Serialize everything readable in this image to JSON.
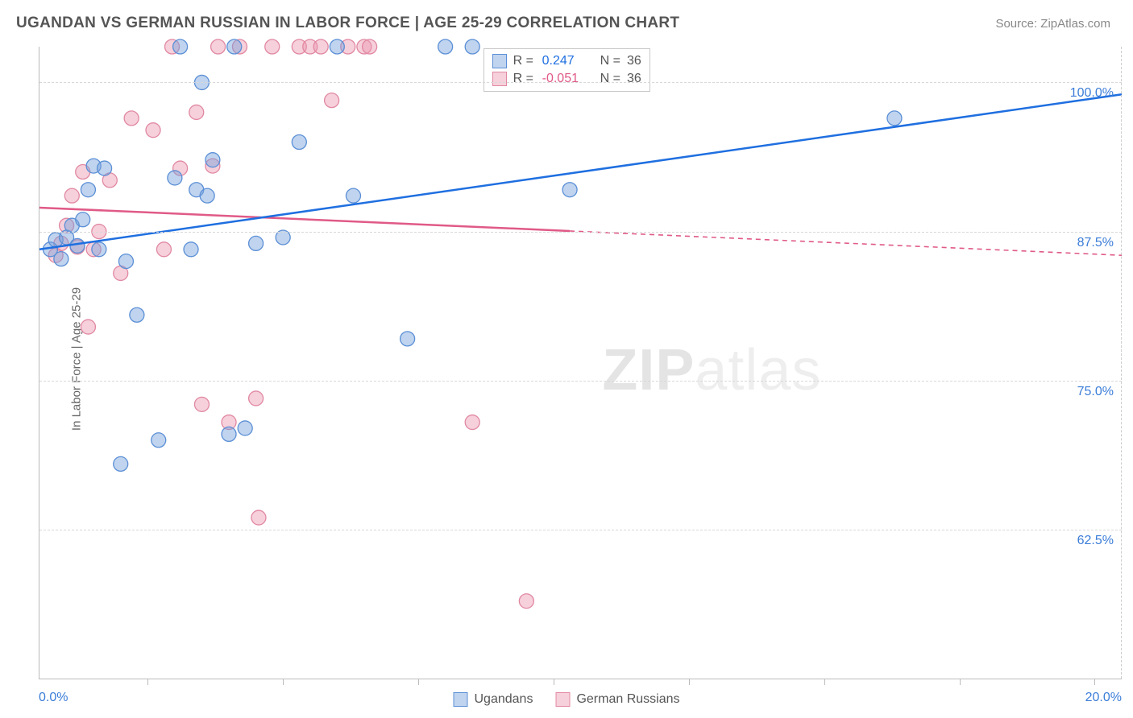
{
  "header": {
    "title": "UGANDAN VS GERMAN RUSSIAN IN LABOR FORCE | AGE 25-29 CORRELATION CHART",
    "source": "Source: ZipAtlas.com"
  },
  "axis": {
    "y_label": "In Labor Force | Age 25-29",
    "x_min": 0.0,
    "x_max": 20.0,
    "x_min_label": "0.0%",
    "x_max_label": "20.0%",
    "y_min": 50.0,
    "y_max": 103.0,
    "y_grid": [
      62.5,
      75.0,
      87.5,
      100.0
    ],
    "y_grid_labels": [
      "62.5%",
      "75.0%",
      "87.5%",
      "100.0%"
    ],
    "x_ticks": [
      2.0,
      4.5,
      7.0,
      9.5,
      12.0,
      14.5,
      17.0,
      19.5
    ]
  },
  "style": {
    "grid_color": "#d8d8d8",
    "axis_color": "#bbbbbb",
    "tick_label_color": "#3b7dd8",
    "bg": "#ffffff",
    "marker_radius": 9,
    "marker_stroke_width": 1.3,
    "trend_width": 2.5
  },
  "series": {
    "ugandans": {
      "label": "Ugandans",
      "fill": "rgba(115,160,220,0.45)",
      "stroke": "#5b8fd6",
      "trend_color": "#1f6fe0",
      "r_value": "0.247",
      "n_value": "36",
      "r_color": "#1f6fe0",
      "trend": {
        "x1": 0.0,
        "y1": 86.0,
        "x2": 20.0,
        "y2": 99.0
      },
      "trend_solid_xmax": 20.0,
      "points": [
        [
          0.2,
          86.0
        ],
        [
          0.3,
          86.8
        ],
        [
          0.4,
          85.2
        ],
        [
          0.5,
          87.0
        ],
        [
          0.6,
          88.0
        ],
        [
          0.7,
          86.3
        ],
        [
          0.8,
          88.5
        ],
        [
          0.9,
          91.0
        ],
        [
          1.0,
          93.0
        ],
        [
          1.1,
          86.0
        ],
        [
          1.2,
          92.8
        ],
        [
          1.5,
          68.0
        ],
        [
          1.6,
          85.0
        ],
        [
          1.8,
          80.5
        ],
        [
          2.2,
          70.0
        ],
        [
          2.5,
          92.0
        ],
        [
          2.6,
          103.0
        ],
        [
          2.8,
          86.0
        ],
        [
          2.9,
          91.0
        ],
        [
          3.0,
          100.0
        ],
        [
          3.1,
          90.5
        ],
        [
          3.2,
          93.5
        ],
        [
          3.5,
          70.5
        ],
        [
          3.6,
          103.0
        ],
        [
          3.8,
          71.0
        ],
        [
          4.0,
          86.5
        ],
        [
          4.5,
          87.0
        ],
        [
          4.8,
          95.0
        ],
        [
          5.5,
          103.0
        ],
        [
          5.8,
          90.5
        ],
        [
          6.8,
          78.5
        ],
        [
          7.5,
          103.0
        ],
        [
          8.0,
          103.0
        ],
        [
          9.8,
          91.0
        ],
        [
          15.8,
          97.0
        ]
      ]
    },
    "german_russians": {
      "label": "German Russians",
      "fill": "rgba(235,150,175,0.45)",
      "stroke": "#e188a2",
      "trend_color": "#e05a87",
      "r_value": "-0.051",
      "n_value": "36",
      "r_color": "#e05a87",
      "trend": {
        "x1": 0.0,
        "y1": 89.5,
        "x2": 20.0,
        "y2": 85.5
      },
      "trend_solid_xmax": 9.8,
      "points": [
        [
          0.3,
          85.5
        ],
        [
          0.4,
          86.5
        ],
        [
          0.5,
          88.0
        ],
        [
          0.6,
          90.5
        ],
        [
          0.7,
          86.2
        ],
        [
          0.8,
          92.5
        ],
        [
          0.9,
          79.5
        ],
        [
          1.0,
          86.0
        ],
        [
          1.1,
          87.5
        ],
        [
          1.3,
          91.8
        ],
        [
          1.5,
          84.0
        ],
        [
          1.7,
          97.0
        ],
        [
          2.1,
          96.0
        ],
        [
          2.3,
          86.0
        ],
        [
          2.45,
          103.0
        ],
        [
          2.6,
          92.8
        ],
        [
          2.9,
          97.5
        ],
        [
          3.0,
          73.0
        ],
        [
          3.2,
          93.0
        ],
        [
          3.3,
          103.0
        ],
        [
          3.5,
          71.5
        ],
        [
          3.7,
          103.0
        ],
        [
          4.0,
          73.5
        ],
        [
          4.05,
          63.5
        ],
        [
          4.3,
          103.0
        ],
        [
          4.8,
          103.0
        ],
        [
          5.0,
          103.0
        ],
        [
          5.2,
          103.0
        ],
        [
          5.4,
          98.5
        ],
        [
          5.7,
          103.0
        ],
        [
          6.0,
          103.0
        ],
        [
          6.1,
          103.0
        ],
        [
          8.0,
          71.5
        ],
        [
          9.0,
          56.5
        ]
      ]
    }
  },
  "legend_top": {
    "r_label": "R =",
    "n_label": "N ="
  },
  "watermark": {
    "zip": "ZIP",
    "atlas": "atlas"
  }
}
